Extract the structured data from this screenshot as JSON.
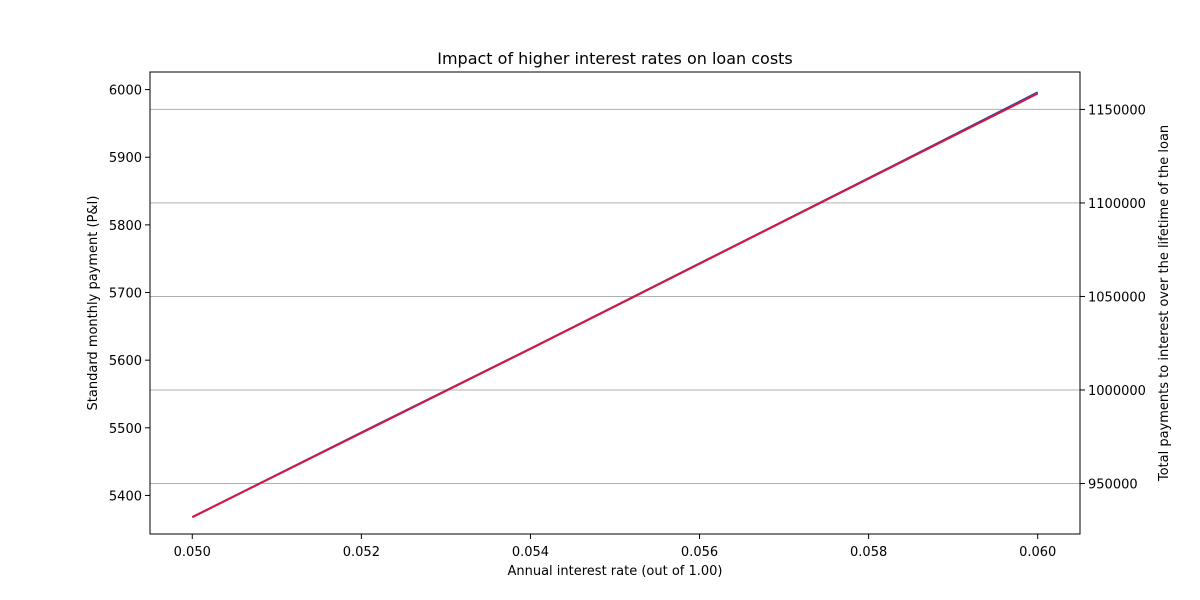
{
  "chart_data": {
    "type": "line",
    "title": "Impact of higher interest rates on loan costs",
    "xlabel": "Annual interest rate (out of 1.00)",
    "ylabel_left": "Standard monthly payment (P&I)",
    "ylabel_right": "Total payments to interest over the lifetime of the loan",
    "x": [
      0.05,
      0.052,
      0.054,
      0.056,
      0.058,
      0.06
    ],
    "series": [
      {
        "axis": "left",
        "color": "#1f4fb4",
        "values": [
          5368,
          5493,
          5617,
          5743,
          5869,
          5996
        ]
      },
      {
        "axis": "right",
        "color": "#dc143c",
        "values": [
          932000,
          977000,
          1022000,
          1067500,
          1113000,
          1158500
        ]
      }
    ],
    "xlim": [
      0.0495,
      0.0605
    ],
    "ylim_left": [
      5343,
      6026
    ],
    "ylim_right": [
      923000,
      1170000
    ],
    "x_ticks": [
      "0.050",
      "0.052",
      "0.054",
      "0.056",
      "0.058",
      "0.060"
    ],
    "y_left_ticks": [
      5400,
      5500,
      5600,
      5700,
      5800,
      5900,
      6000
    ],
    "y_right_ticks": [
      950000,
      1000000,
      1050000,
      1100000,
      1150000
    ],
    "grid": "horizontal on right axis"
  }
}
